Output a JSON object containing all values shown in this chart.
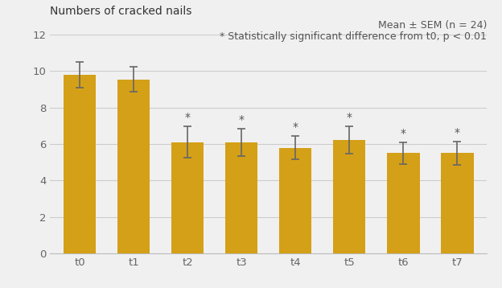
{
  "title": "Numbers of cracked nails",
  "categories": [
    "t0",
    "t1",
    "t2",
    "t3",
    "t4",
    "t5",
    "t6",
    "t7"
  ],
  "values": [
    9.8,
    9.55,
    6.1,
    6.1,
    5.8,
    6.2,
    5.5,
    5.5
  ],
  "errors": [
    0.7,
    0.7,
    0.85,
    0.75,
    0.65,
    0.75,
    0.6,
    0.65
  ],
  "bar_color": "#D4A017",
  "sig_markers": [
    false,
    false,
    true,
    true,
    true,
    true,
    true,
    true
  ],
  "annotation1": "Mean ± SEM (n = 24)",
  "annotation2": "* Statistically significant difference from t0, p < 0.01",
  "ylim": [
    0,
    12
  ],
  "yticks": [
    0,
    2,
    4,
    6,
    8,
    10,
    12
  ],
  "background_color": "#f0f0f0",
  "title_fontsize": 10,
  "tick_fontsize": 9.5,
  "annotation_fontsize": 9
}
